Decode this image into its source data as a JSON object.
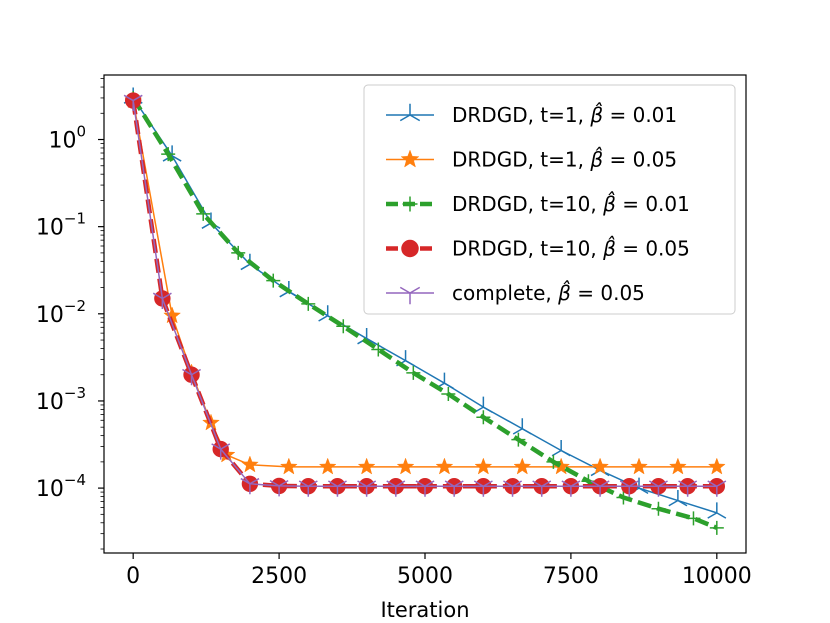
{
  "chart_data": {
    "type": "line",
    "title": "",
    "xlabel": "Iteration",
    "ylabel": "",
    "xlim": [
      -500,
      10500
    ],
    "ylim": [
      1.8e-05,
      5.5
    ],
    "yscale": "log",
    "xticks": [
      {
        "value": 0,
        "label": "0"
      },
      {
        "value": 2500,
        "label": "2500"
      },
      {
        "value": 5000,
        "label": "5000"
      },
      {
        "value": 7500,
        "label": "7500"
      },
      {
        "value": 10000,
        "label": "10000"
      }
    ],
    "yticks": [
      {
        "exp": 0,
        "base": "10",
        "sup": "0"
      },
      {
        "exp": -1,
        "base": "10",
        "sup": "−1"
      },
      {
        "exp": -2,
        "base": "10",
        "sup": "−2"
      },
      {
        "exp": -3,
        "base": "10",
        "sup": "−3"
      },
      {
        "exp": -4,
        "base": "10",
        "sup": "−4"
      }
    ],
    "legend_position": "top-right",
    "series": [
      {
        "name": "DRDGD, t=1, β̂ = 0.01",
        "legend_prefix": "DRDGD, t=1, ",
        "legend_beta": "β̂",
        "legend_value": " = 0.01",
        "color": "#1f77b4",
        "style": "solid",
        "marker": "tri",
        "x": [
          0,
          667,
          1333,
          2000,
          2667,
          3333,
          4000,
          4667,
          5333,
          6000,
          6667,
          7333,
          8000,
          8667,
          9333,
          10000
        ],
        "y": [
          3.0,
          0.65,
          0.11,
          0.037,
          0.018,
          0.0095,
          0.0052,
          0.0029,
          0.0016,
          0.00085,
          0.00048,
          0.00027,
          0.00016,
          0.0001,
          7.2e-05,
          5.2e-05
        ]
      },
      {
        "name": "DRDGD, t=1, β̂ = 0.05",
        "legend_prefix": "DRDGD, t=1, ",
        "legend_beta": "β̂",
        "legend_value": " = 0.05",
        "color": "#ff7f0e",
        "style": "solid",
        "marker": "star",
        "x": [
          0,
          667,
          1000,
          1333,
          1600,
          2000,
          2667,
          3333,
          4000,
          4667,
          5333,
          6000,
          6667,
          7333,
          8000,
          8667,
          9333,
          10000
        ],
        "y": [
          2.8,
          0.0095,
          0.0021,
          0.00056,
          0.00024,
          0.000185,
          0.000175,
          0.000175,
          0.000175,
          0.000175,
          0.000175,
          0.000175,
          0.000175,
          0.000175,
          0.000175,
          0.000175,
          0.000175,
          0.000175
        ]
      },
      {
        "name": "DRDGD, t=10, β̂ = 0.01",
        "legend_prefix": "DRDGD, t=10, ",
        "legend_beta": "β̂",
        "legend_value": " = 0.01",
        "color": "#2ca02c",
        "style": "dashed",
        "marker": "plus",
        "x": [
          0,
          600,
          1200,
          1800,
          2400,
          3000,
          3600,
          4200,
          4800,
          5400,
          6000,
          6600,
          7200,
          7800,
          8400,
          9000,
          9600,
          10000
        ],
        "y": [
          3.0,
          0.68,
          0.14,
          0.05,
          0.024,
          0.013,
          0.0072,
          0.0039,
          0.0021,
          0.0012,
          0.00065,
          0.00036,
          0.0002,
          0.00012,
          7.8e-05,
          5.8e-05,
          4.5e-05,
          3.5e-05
        ]
      },
      {
        "name": "DRDGD, t=10, β̂ = 0.05",
        "legend_prefix": "DRDGD, t=10, ",
        "legend_beta": "β̂",
        "legend_value": " = 0.05",
        "color": "#d62728",
        "style": "dashed",
        "marker": "circle",
        "x": [
          0,
          500,
          1000,
          1500,
          2000,
          2500,
          3000,
          3500,
          4000,
          4500,
          5000,
          5500,
          6000,
          6500,
          7000,
          7500,
          8000,
          8500,
          9000,
          9500,
          10000
        ],
        "y": [
          2.8,
          0.015,
          0.002,
          0.00028,
          0.000112,
          0.000106,
          0.000105,
          0.000105,
          0.000105,
          0.000105,
          0.000105,
          0.000105,
          0.000105,
          0.000105,
          0.000105,
          0.000105,
          0.000105,
          0.000105,
          0.000105,
          0.000105,
          0.000105
        ]
      },
      {
        "name": "complete, β̂ = 0.05",
        "legend_prefix": "complete, ",
        "legend_beta": "β̂",
        "legend_value": " = 0.05",
        "color": "#9467bd",
        "style": "solid",
        "marker": "tri_down",
        "x": [
          0,
          500,
          1000,
          1500,
          2000,
          2500,
          3000,
          3500,
          4000,
          4500,
          5000,
          5500,
          6000,
          6500,
          7000,
          7500,
          8000,
          8500,
          9000,
          9500,
          10000
        ],
        "y": [
          2.8,
          0.015,
          0.002,
          0.00028,
          0.000112,
          0.000106,
          0.000105,
          0.000105,
          0.000105,
          0.000105,
          0.000105,
          0.000105,
          0.000105,
          0.000105,
          0.000105,
          0.000105,
          0.000105,
          0.000105,
          0.000105,
          0.000105,
          0.000105
        ]
      }
    ]
  }
}
